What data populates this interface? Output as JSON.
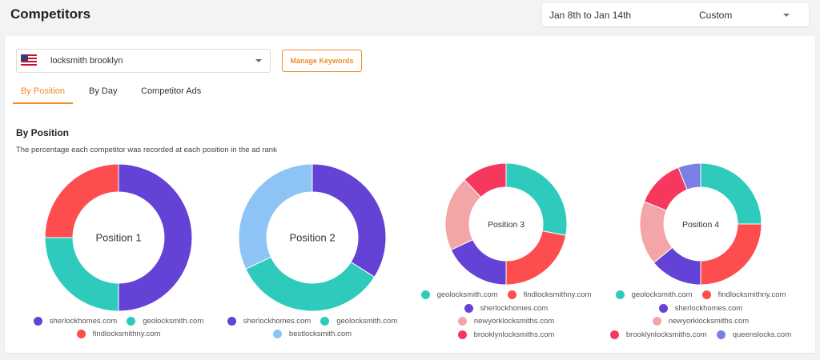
{
  "header": {
    "title": "Competitors",
    "date_range": "Jan 8th to Jan 14th",
    "date_mode": "Custom"
  },
  "keyword": "locksmith brooklyn",
  "manage_button": "Manage Keywords",
  "tabs": [
    "By Position",
    "By Day",
    "Competitor Ads"
  ],
  "section": {
    "title": "By Position",
    "description": "The percentage each competitor was recorded at each position in the ad rank"
  },
  "colors": {
    "sherlockhomes.com": "#6442d6",
    "geolocksmith.com": "#2ecbbd",
    "findlocksmithny.com": "#fd4d4f",
    "bestlocksmith.com": "#8dc3f5",
    "newyorklocksmiths.com": "#f4a5a7",
    "brooklynlocksmiths.com": "#f6385f",
    "queenslocks.com": "#7b7fe3"
  },
  "chart_data": [
    {
      "type": "pie",
      "title": "Position 1",
      "slices": [
        {
          "name": "sherlockhomes.com",
          "value": 50
        },
        {
          "name": "geolocksmith.com",
          "value": 25
        },
        {
          "name": "findlocksmithny.com",
          "value": 25
        }
      ],
      "legend": [
        [
          "sherlockhomes.com",
          "geolocksmith.com"
        ],
        [
          "findlocksmithny.com"
        ]
      ]
    },
    {
      "type": "pie",
      "title": "Position 2",
      "slices": [
        {
          "name": "sherlockhomes.com",
          "value": 34
        },
        {
          "name": "geolocksmith.com",
          "value": 34
        },
        {
          "name": "bestlocksmith.com",
          "value": 32
        }
      ],
      "legend": [
        [
          "sherlockhomes.com",
          "geolocksmith.com"
        ],
        [
          "bestlocksmith.com"
        ]
      ]
    },
    {
      "type": "pie",
      "title": "Position 3",
      "slices": [
        {
          "name": "geolocksmith.com",
          "value": 28
        },
        {
          "name": "findlocksmithny.com",
          "value": 22
        },
        {
          "name": "sherlockhomes.com",
          "value": 18
        },
        {
          "name": "newyorklocksmiths.com",
          "value": 20
        },
        {
          "name": "brooklynlocksmiths.com",
          "value": 12
        }
      ],
      "legend": [
        [
          "geolocksmith.com",
          "findlocksmithny.com"
        ],
        [
          "sherlockhomes.com"
        ],
        [
          "newyorklocksmiths.com"
        ],
        [
          "brooklynlocksmiths.com"
        ]
      ]
    },
    {
      "type": "pie",
      "title": "Position 4",
      "slices": [
        {
          "name": "geolocksmith.com",
          "value": 25
        },
        {
          "name": "findlocksmithny.com",
          "value": 25
        },
        {
          "name": "sherlockhomes.com",
          "value": 14
        },
        {
          "name": "newyorklocksmiths.com",
          "value": 17
        },
        {
          "name": "brooklynlocksmiths.com",
          "value": 13
        },
        {
          "name": "queenslocks.com",
          "value": 6
        }
      ],
      "legend": [
        [
          "geolocksmith.com",
          "findlocksmithny.com"
        ],
        [
          "sherlockhomes.com"
        ],
        [
          "newyorklocksmiths.com"
        ],
        [
          "brooklynlocksmiths.com",
          "queenslocks.com"
        ]
      ]
    }
  ]
}
